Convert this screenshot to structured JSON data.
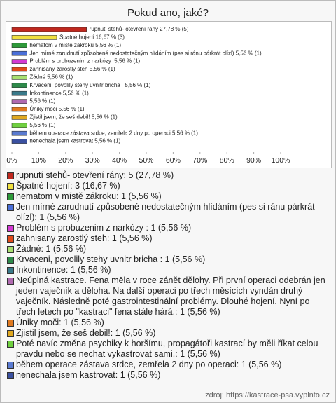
{
  "title": "Pokud ano, jaké?",
  "chart_data": {
    "type": "bar",
    "orientation": "horizontal",
    "categories": [
      "rupnutí stehů- otevření rány: 5 (27,78 %)",
      "Špatné hojení: 3 (16,67 %)",
      "hematom v místě zákroku: 1 (5,56 %)",
      "Jen mírné zarudnutí způsobené nedostatečným hlídáním (pes si ránu párkrát olízl): 1 (5,56 %)",
      "Problém s probuzenim z narkózy : 1 (5,56 %)",
      "zahnisany zarostlý steh: 1 (5,56 %)",
      "Žádné: 1 (5,56 %)",
      "Krvaceni, povolily stehy uvnitr bricha : 1 (5,56 %)",
      "Inkontinence: 1 (5,56 %)",
      "Neúplná kastrace. Fena měla v roce zánět dělohy. Při první operaci odebrán jen jeden vaječník a děloha. Na další operaci po třech měsících vyndán druhý vaječník. Následně poté gastrointestinální problémy. Dlouhé hojení. Nyní po třech letech po \"kastraci\" fena stále hárá.: 1 (5,56 %)",
      "Úniky moči: 1 (5,56 %)",
      "Zjistil jsem, že seš debil!: 1 (5,56 %)",
      "Poté navíc změna psychiky k horšímu, propagátoři kastrací by měli říkat celou pravdu nebo se nechat vykastrovat sami.: 1 (5,56 %)",
      "během operace zástava srdce, zemřela 2 dny po operaci: 1 (5,56 %)",
      "nenechala jsem kastrovat: 1 (5,56 %)"
    ],
    "values": [
      27.78,
      16.67,
      5.56,
      5.56,
      5.56,
      5.56,
      5.56,
      5.56,
      5.56,
      5.56,
      5.56,
      5.56,
      5.56,
      5.56,
      5.56
    ],
    "value_labels": [
      "rupnutí stehů- otevření rány 27,78 % (5)",
      "Špatné hojení 16,67 % (3)",
      "hematom v místě zákroku 5,56 % (1)",
      "Jen mírné zarudnutí způsobené nedostatečným hlídáním (pes si ránu párkrát olízl) 5,56 % (1)",
      "Problém s probuzenim z narkózy  5,56 % (1)",
      "zahnisany zarostlý steh 5,56 % (1)",
      "Žádné 5,56 % (1)",
      "Krvaceni, povolily stehy uvnitr bricha   5,56 % (1)",
      "Inkontinence 5,56 % (1)",
      "5,56 % (1)",
      "Úniky moči 5,56 % (1)",
      "Zjistil jsem, že seš debil! 5,56 % (1)",
      "5,56 % (1)",
      "během operace zástava srdce, zemřela 2 dny po operaci 5,56 % (1)",
      "nenechala jsem kastrovat 5,56 % (1)"
    ],
    "colors": [
      "#c0281e",
      "#f0e040",
      "#2e9a3a",
      "#4a6fd8",
      "#d43ad4",
      "#e04a1a",
      "#a8e070",
      "#2e8a4a",
      "#3a7a8a",
      "#b06ab0",
      "#e07a20",
      "#e0a820",
      "#70d040",
      "#5a7ad0",
      "#3a50a0"
    ],
    "xlim": [
      0,
      100
    ],
    "xticks": [
      {
        "value": 0,
        "label": "0%"
      },
      {
        "value": 10,
        "label": "10%"
      },
      {
        "value": 20,
        "label": "20%"
      },
      {
        "value": 30,
        "label": "30%"
      },
      {
        "value": 40,
        "label": "40%"
      },
      {
        "value": 50,
        "label": "50%"
      },
      {
        "value": 60,
        "label": "60%"
      },
      {
        "value": 70,
        "label": "70%"
      },
      {
        "value": 80,
        "label": "80%"
      },
      {
        "value": 90,
        "label": "90%"
      },
      {
        "value": 100,
        "label": "100%"
      }
    ],
    "grid": false
  },
  "source": "zdroj: https://kastrace-psa.vyplnto.cz"
}
